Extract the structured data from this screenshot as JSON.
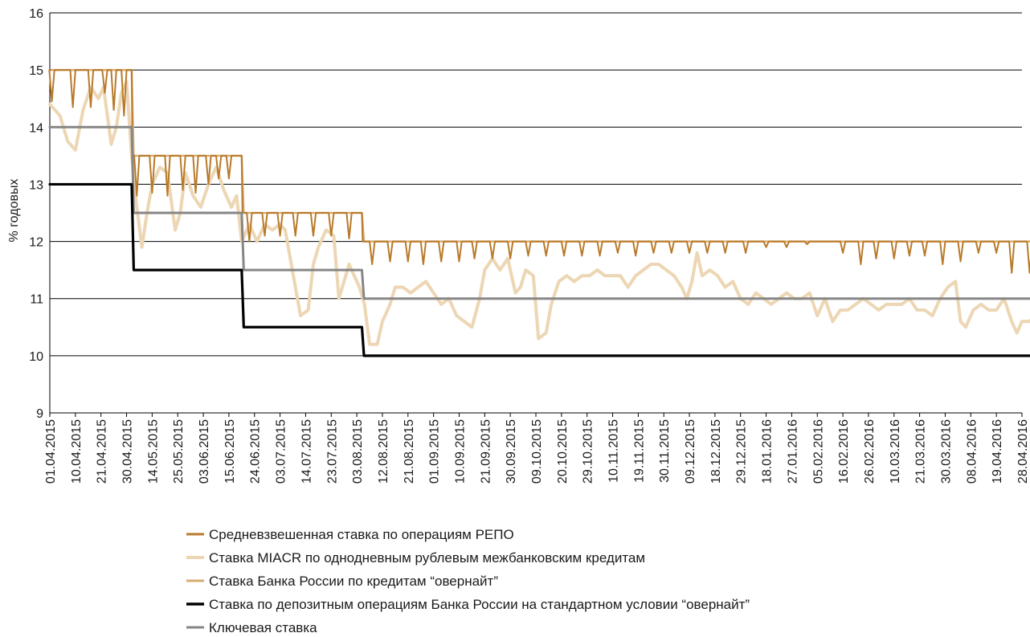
{
  "chart_data": {
    "type": "line",
    "title": "",
    "xlabel": "",
    "ylabel": "% годовых",
    "ylim": [
      9,
      16
    ],
    "yticks": [
      9,
      10,
      11,
      12,
      13,
      14,
      15,
      16
    ],
    "grid": "horizontal",
    "legend_position": "bottom",
    "x_tick_labels": [
      "01.04.2015",
      "10.04.2015",
      "21.04.2015",
      "30.04.2015",
      "14.05.2015",
      "25.05.2015",
      "03.06.2015",
      "15.06.2015",
      "24.06.2015",
      "03.07.2015",
      "14.07.2015",
      "23.07.2015",
      "03.08.2015",
      "12.08.2015",
      "21.08.2015",
      "01.09.2015",
      "10.09.2015",
      "21.09.2015",
      "30.09.2015",
      "09.10.2015",
      "20.10.2015",
      "29.10.2015",
      "10.11.2015",
      "19.11.2015",
      "30.11.2015",
      "09.12.2015",
      "18.12.2015",
      "29.12.2015",
      "18.01.2016",
      "27.01.2016",
      "05.02.2016",
      "16.02.2016",
      "26.02.2016",
      "10.03.2016",
      "21.03.2016",
      "30.03.2016",
      "08.04.2016",
      "19.04.2016",
      "28.04.2016"
    ],
    "series": [
      {
        "name": "Средневзвешенная ставка по операциям РЕПО",
        "color": "#b87a2a",
        "style": "spiky",
        "segments": [
          {
            "from": 0,
            "to": 3.2,
            "base": 15.0,
            "dips": [
              {
                "at": 0.08,
                "v": 14.45
              },
              {
                "at": 0.9,
                "v": 14.35
              },
              {
                "at": 1.6,
                "v": 14.35
              },
              {
                "at": 2.15,
                "v": 14.6
              },
              {
                "at": 2.5,
                "v": 14.3
              },
              {
                "at": 2.9,
                "v": 14.2
              }
            ]
          },
          {
            "from": 3.2,
            "to": 7.5,
            "base": 13.5,
            "dips": [
              {
                "at": 3.4,
                "v": 12.8
              },
              {
                "at": 4.0,
                "v": 12.85
              },
              {
                "at": 4.6,
                "v": 12.8
              },
              {
                "at": 5.2,
                "v": 12.9
              },
              {
                "at": 5.7,
                "v": 12.85
              },
              {
                "at": 6.2,
                "v": 13.0
              },
              {
                "at": 6.6,
                "v": 13.1
              },
              {
                "at": 7.0,
                "v": 13.1
              }
            ]
          },
          {
            "from": 7.5,
            "to": 12.2,
            "base": 12.5,
            "dips": [
              {
                "at": 7.8,
                "v": 12.0
              },
              {
                "at": 8.4,
                "v": 12.1
              },
              {
                "at": 9.0,
                "v": 12.1
              },
              {
                "at": 9.6,
                "v": 12.1
              },
              {
                "at": 10.3,
                "v": 12.1
              },
              {
                "at": 11.0,
                "v": 12.1
              },
              {
                "at": 11.7,
                "v": 12.05
              }
            ]
          },
          {
            "from": 12.2,
            "to": 38.8,
            "base": 12.0,
            "dips": [
              {
                "at": 12.6,
                "v": 11.6
              },
              {
                "at": 13.3,
                "v": 11.65
              },
              {
                "at": 14.0,
                "v": 11.65
              },
              {
                "at": 14.6,
                "v": 11.6
              },
              {
                "at": 15.3,
                "v": 11.65
              },
              {
                "at": 16.0,
                "v": 11.65
              },
              {
                "at": 16.6,
                "v": 11.7
              },
              {
                "at": 17.3,
                "v": 11.7
              },
              {
                "at": 18.0,
                "v": 11.7
              },
              {
                "at": 18.7,
                "v": 11.75
              },
              {
                "at": 19.4,
                "v": 11.75
              },
              {
                "at": 20.1,
                "v": 11.75
              },
              {
                "at": 20.8,
                "v": 11.75
              },
              {
                "at": 21.5,
                "v": 11.75
              },
              {
                "at": 22.2,
                "v": 11.8
              },
              {
                "at": 22.9,
                "v": 11.75
              },
              {
                "at": 23.6,
                "v": 11.8
              },
              {
                "at": 24.3,
                "v": 11.8
              },
              {
                "at": 25.0,
                "v": 11.8
              },
              {
                "at": 25.7,
                "v": 11.8
              },
              {
                "at": 26.4,
                "v": 11.8
              },
              {
                "at": 27.2,
                "v": 11.8
              },
              {
                "at": 28.0,
                "v": 11.9
              },
              {
                "at": 28.8,
                "v": 11.9
              },
              {
                "at": 29.6,
                "v": 11.95
              },
              {
                "at": 31.0,
                "v": 11.8
              },
              {
                "at": 31.7,
                "v": 11.6
              },
              {
                "at": 32.3,
                "v": 11.7
              },
              {
                "at": 33.0,
                "v": 11.7
              },
              {
                "at": 33.6,
                "v": 11.75
              },
              {
                "at": 34.2,
                "v": 11.75
              },
              {
                "at": 34.9,
                "v": 11.6
              },
              {
                "at": 35.6,
                "v": 11.65
              },
              {
                "at": 36.3,
                "v": 11.8
              },
              {
                "at": 37.0,
                "v": 11.8
              },
              {
                "at": 37.6,
                "v": 11.45
              },
              {
                "at": 38.3,
                "v": 11.45
              }
            ]
          }
        ]
      },
      {
        "name": "Ставка MIACR по однодневным рублевым межбанковским кредитам",
        "color": "#ecd6b3",
        "style": "smooth",
        "points": [
          [
            0,
            14.4
          ],
          [
            0.4,
            14.2
          ],
          [
            0.7,
            13.75
          ],
          [
            1.0,
            13.6
          ],
          [
            1.3,
            14.3
          ],
          [
            1.6,
            14.7
          ],
          [
            1.9,
            14.5
          ],
          [
            2.1,
            14.7
          ],
          [
            2.4,
            13.7
          ],
          [
            2.6,
            14.0
          ],
          [
            2.8,
            14.6
          ],
          [
            3.0,
            14.8
          ],
          [
            3.2,
            13.5
          ],
          [
            3.4,
            12.6
          ],
          [
            3.6,
            11.9
          ],
          [
            3.8,
            12.5
          ],
          [
            4.0,
            13.0
          ],
          [
            4.3,
            13.3
          ],
          [
            4.6,
            13.2
          ],
          [
            4.9,
            12.2
          ],
          [
            5.1,
            12.5
          ],
          [
            5.3,
            13.2
          ],
          [
            5.6,
            12.8
          ],
          [
            5.9,
            12.6
          ],
          [
            6.2,
            13.0
          ],
          [
            6.5,
            13.3
          ],
          [
            6.8,
            12.9
          ],
          [
            7.1,
            12.6
          ],
          [
            7.3,
            12.8
          ],
          [
            7.5,
            12.0
          ],
          [
            7.8,
            12.3
          ],
          [
            8.1,
            12.0
          ],
          [
            8.4,
            12.3
          ],
          [
            8.7,
            12.2
          ],
          [
            9.0,
            12.3
          ],
          [
            9.2,
            12.2
          ],
          [
            9.4,
            11.7
          ],
          [
            9.6,
            11.2
          ],
          [
            9.8,
            10.7
          ],
          [
            10.1,
            10.8
          ],
          [
            10.3,
            11.6
          ],
          [
            10.5,
            11.9
          ],
          [
            10.8,
            12.2
          ],
          [
            11.1,
            12.1
          ],
          [
            11.3,
            11.0
          ],
          [
            11.5,
            11.3
          ],
          [
            11.7,
            11.6
          ],
          [
            11.9,
            11.4
          ],
          [
            12.1,
            11.2
          ],
          [
            12.3,
            10.9
          ],
          [
            12.5,
            10.2
          ],
          [
            12.8,
            10.2
          ],
          [
            13.0,
            10.6
          ],
          [
            13.3,
            10.9
          ],
          [
            13.5,
            11.2
          ],
          [
            13.8,
            11.2
          ],
          [
            14.1,
            11.1
          ],
          [
            14.4,
            11.2
          ],
          [
            14.7,
            11.3
          ],
          [
            15.0,
            11.1
          ],
          [
            15.3,
            10.9
          ],
          [
            15.6,
            11.0
          ],
          [
            15.9,
            10.7
          ],
          [
            16.2,
            10.6
          ],
          [
            16.5,
            10.5
          ],
          [
            16.8,
            11.0
          ],
          [
            17.0,
            11.5
          ],
          [
            17.3,
            11.7
          ],
          [
            17.6,
            11.5
          ],
          [
            17.9,
            11.7
          ],
          [
            18.2,
            11.1
          ],
          [
            18.4,
            11.2
          ],
          [
            18.6,
            11.5
          ],
          [
            18.9,
            11.4
          ],
          [
            19.1,
            10.3
          ],
          [
            19.4,
            10.4
          ],
          [
            19.6,
            10.9
          ],
          [
            19.9,
            11.3
          ],
          [
            20.2,
            11.4
          ],
          [
            20.5,
            11.3
          ],
          [
            20.8,
            11.4
          ],
          [
            21.1,
            11.4
          ],
          [
            21.4,
            11.5
          ],
          [
            21.7,
            11.4
          ],
          [
            22.0,
            11.4
          ],
          [
            22.3,
            11.4
          ],
          [
            22.6,
            11.2
          ],
          [
            22.9,
            11.4
          ],
          [
            23.2,
            11.5
          ],
          [
            23.5,
            11.6
          ],
          [
            23.8,
            11.6
          ],
          [
            24.1,
            11.5
          ],
          [
            24.4,
            11.4
          ],
          [
            24.7,
            11.2
          ],
          [
            24.9,
            11.0
          ],
          [
            25.1,
            11.3
          ],
          [
            25.3,
            11.8
          ],
          [
            25.5,
            11.4
          ],
          [
            25.8,
            11.5
          ],
          [
            26.1,
            11.4
          ],
          [
            26.4,
            11.2
          ],
          [
            26.7,
            11.3
          ],
          [
            27.0,
            11.0
          ],
          [
            27.3,
            10.9
          ],
          [
            27.6,
            11.1
          ],
          [
            27.9,
            11.0
          ],
          [
            28.2,
            10.9
          ],
          [
            28.5,
            11.0
          ],
          [
            28.8,
            11.1
          ],
          [
            29.1,
            11.0
          ],
          [
            29.4,
            11.0
          ],
          [
            29.7,
            11.1
          ],
          [
            30.0,
            10.7
          ],
          [
            30.3,
            11.0
          ],
          [
            30.6,
            10.6
          ],
          [
            30.9,
            10.8
          ],
          [
            31.2,
            10.8
          ],
          [
            31.5,
            10.9
          ],
          [
            31.8,
            11.0
          ],
          [
            32.1,
            10.9
          ],
          [
            32.4,
            10.8
          ],
          [
            32.7,
            10.9
          ],
          [
            33.0,
            10.9
          ],
          [
            33.3,
            10.9
          ],
          [
            33.6,
            11.0
          ],
          [
            33.9,
            10.8
          ],
          [
            34.2,
            10.8
          ],
          [
            34.5,
            10.7
          ],
          [
            34.8,
            11.0
          ],
          [
            35.1,
            11.2
          ],
          [
            35.4,
            11.3
          ],
          [
            35.6,
            10.6
          ],
          [
            35.8,
            10.5
          ],
          [
            36.1,
            10.8
          ],
          [
            36.4,
            10.9
          ],
          [
            36.7,
            10.8
          ],
          [
            37.0,
            10.8
          ],
          [
            37.3,
            11.0
          ],
          [
            37.6,
            10.6
          ],
          [
            37.8,
            10.4
          ],
          [
            38.0,
            10.6
          ],
          [
            38.3,
            10.6
          ],
          [
            38.6,
            10.8
          ],
          [
            38.8,
            11.0
          ]
        ]
      },
      {
        "name": "Ставка Банка России по кредитам “овернайт”",
        "color": "#d7ad72",
        "style": "step",
        "steps": [
          [
            0,
            15.0
          ],
          [
            3.2,
            13.5
          ],
          [
            7.5,
            12.5
          ],
          [
            12.2,
            12.0
          ],
          [
            38.8,
            12.0
          ]
        ]
      },
      {
        "name": "Ставка по депозитным операциям Банка России на стандартном условии “овернайт”",
        "color": "#000000",
        "style": "step",
        "steps": [
          [
            0,
            13.0
          ],
          [
            3.2,
            11.5
          ],
          [
            7.5,
            10.5
          ],
          [
            12.2,
            10.0
          ],
          [
            38.8,
            10.0
          ]
        ]
      },
      {
        "name": "Ключевая ставка",
        "color": "#868686",
        "style": "step",
        "steps": [
          [
            0,
            14.0
          ],
          [
            3.2,
            12.5
          ],
          [
            7.5,
            11.5
          ],
          [
            12.2,
            11.0
          ],
          [
            38.8,
            11.0
          ]
        ]
      }
    ]
  }
}
